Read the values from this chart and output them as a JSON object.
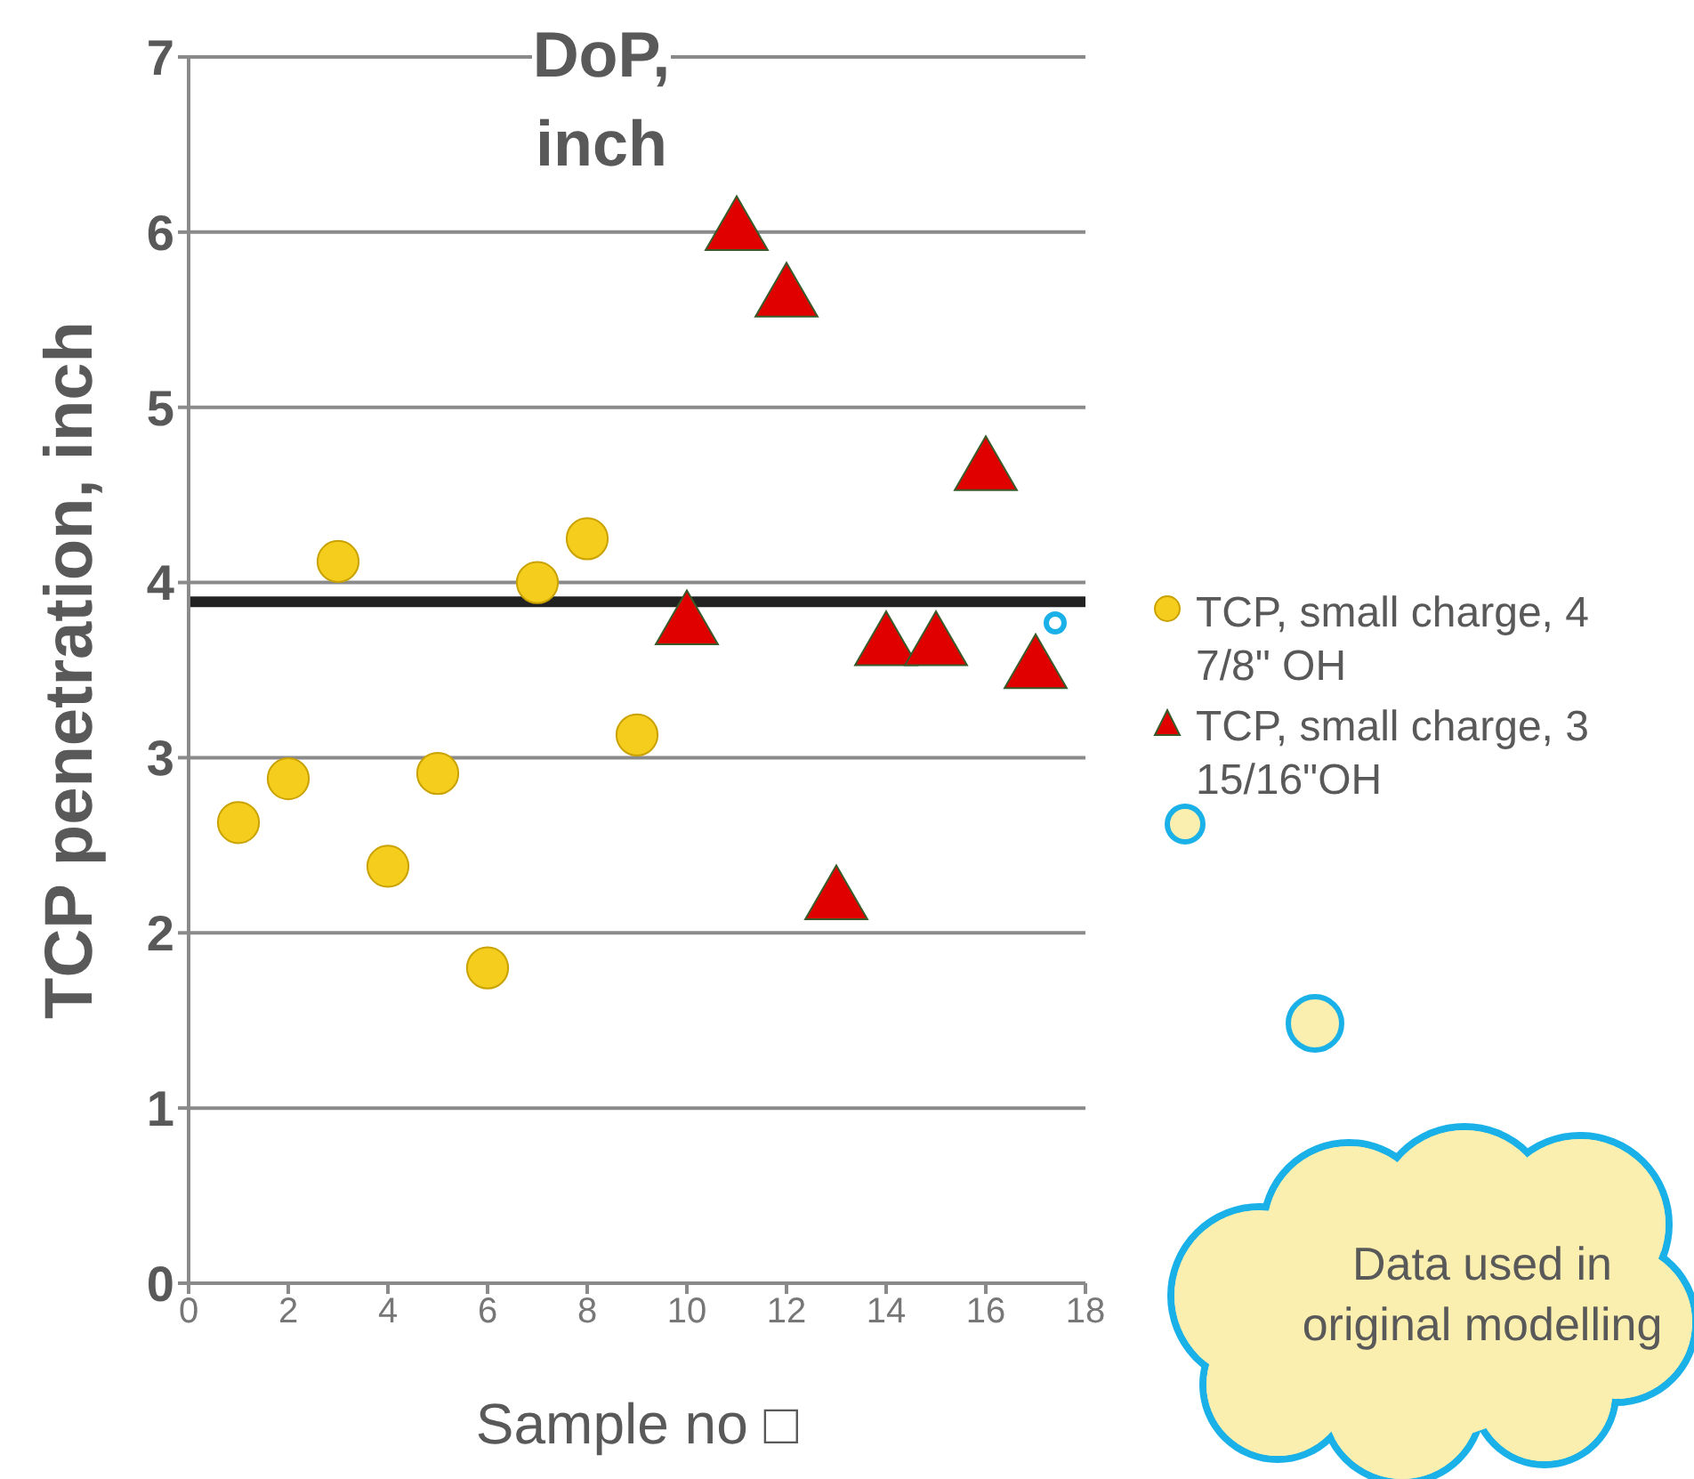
{
  "chart_data": {
    "type": "scatter",
    "title": "DoP, inch",
    "xlabel": "Sample no □",
    "ylabel": "TCP penetration, inch",
    "series": [
      {
        "name": "TCP, small charge, 4 7/8\" OH",
        "color": "#f5cd1c",
        "marker": "circle",
        "x": [
          1,
          2,
          3,
          4,
          5,
          6,
          7,
          8,
          9
        ],
        "values": [
          2.63,
          2.88,
          4.12,
          2.38,
          2.91,
          1.8,
          4.0,
          4.25,
          3.13
        ]
      },
      {
        "name": "TCP, small charge, 3 15/16\"OH",
        "color": "#e00000",
        "marker": "triangle",
        "x": [
          10,
          11,
          12,
          13,
          14,
          15,
          16,
          17
        ],
        "values": [
          3.75,
          6.0,
          5.62,
          2.18,
          3.63,
          3.63,
          4.63,
          3.5
        ]
      }
    ],
    "xlim": [
      0,
      18
    ],
    "xticks": [
      0,
      2,
      4,
      6,
      8,
      10,
      12,
      14,
      16,
      18
    ],
    "ylim": [
      0,
      7
    ],
    "yticks": [
      0,
      1,
      2,
      3,
      4,
      5,
      6,
      7
    ],
    "grid": "y",
    "legend": "right",
    "ref_lines": [
      {
        "axis": "y",
        "value": 3.89,
        "color": "#222222"
      }
    ],
    "annotations": [
      "Data used in original modelling"
    ]
  }
}
